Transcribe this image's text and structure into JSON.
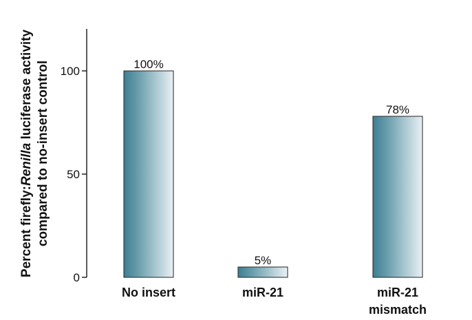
{
  "chart_data": {
    "type": "bar",
    "categories": [
      [
        "No insert"
      ],
      [
        "miR-21"
      ],
      [
        "miR-21",
        "mismatch"
      ]
    ],
    "values": [
      100,
      5,
      78
    ],
    "data_labels": [
      "100%",
      "5%",
      "78%"
    ],
    "title": "",
    "xlabel": "",
    "ylabel_line1_prefix": "Percent firefly:",
    "ylabel_line1_italic": "Renilla",
    "ylabel_line1_suffix": " luciferase activity",
    "ylabel_line2": "compared to no-insert control",
    "yticks": [
      0,
      50,
      100
    ],
    "ylim": [
      0,
      120
    ],
    "grid": false,
    "bar_gradient": {
      "dark": "#3d7f92",
      "mid": "#6b9fae",
      "light": "#e9f1f4"
    },
    "bar_outline": "#222222"
  }
}
